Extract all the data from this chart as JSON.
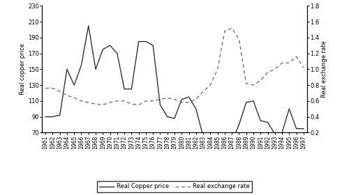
{
  "years": [
    1961,
    1962,
    1963,
    1964,
    1965,
    1966,
    1967,
    1968,
    1969,
    1970,
    1971,
    1972,
    1973,
    1974,
    1975,
    1976,
    1977,
    1978,
    1979,
    1980,
    1981,
    1982,
    1983,
    1984,
    1985,
    1986,
    1987,
    1988,
    1989,
    1990,
    1991,
    1992,
    1993,
    1994,
    1995,
    1996,
    1997
  ],
  "copper_price": [
    90,
    90,
    92,
    150,
    130,
    155,
    205,
    150,
    175,
    180,
    170,
    125,
    125,
    185,
    185,
    180,
    105,
    90,
    88,
    112,
    115,
    100,
    65,
    68,
    60,
    58,
    58,
    80,
    108,
    110,
    85,
    83,
    68,
    70,
    100,
    75,
    75
  ],
  "exchange_rate": [
    0.76,
    0.76,
    0.72,
    0.67,
    0.64,
    0.6,
    0.58,
    0.56,
    0.55,
    0.58,
    0.6,
    0.6,
    0.56,
    0.55,
    0.6,
    0.6,
    0.62,
    0.64,
    0.62,
    0.58,
    0.58,
    0.62,
    0.72,
    0.8,
    1.0,
    1.48,
    1.52,
    1.38,
    0.82,
    0.8,
    0.86,
    0.96,
    1.0,
    1.08,
    1.08,
    1.16,
    1.02
  ],
  "ylabel_left": "Real copper price",
  "ylabel_right": "Real exchange rate",
  "ylim_left": [
    70,
    230
  ],
  "ylim_right": [
    0.2,
    1.8
  ],
  "yticks_left": [
    70,
    90,
    110,
    130,
    150,
    170,
    190,
    210,
    230
  ],
  "yticks_right": [
    0.2,
    0.4,
    0.6,
    0.8,
    1.0,
    1.2,
    1.4,
    1.6,
    1.8
  ],
  "legend_copper": "Real Copper price",
  "legend_exchange": "Real exchange rate",
  "copper_color": "#333333",
  "exchange_color": "#666666",
  "bg_color": "#ffffff",
  "font_size": 6.0
}
